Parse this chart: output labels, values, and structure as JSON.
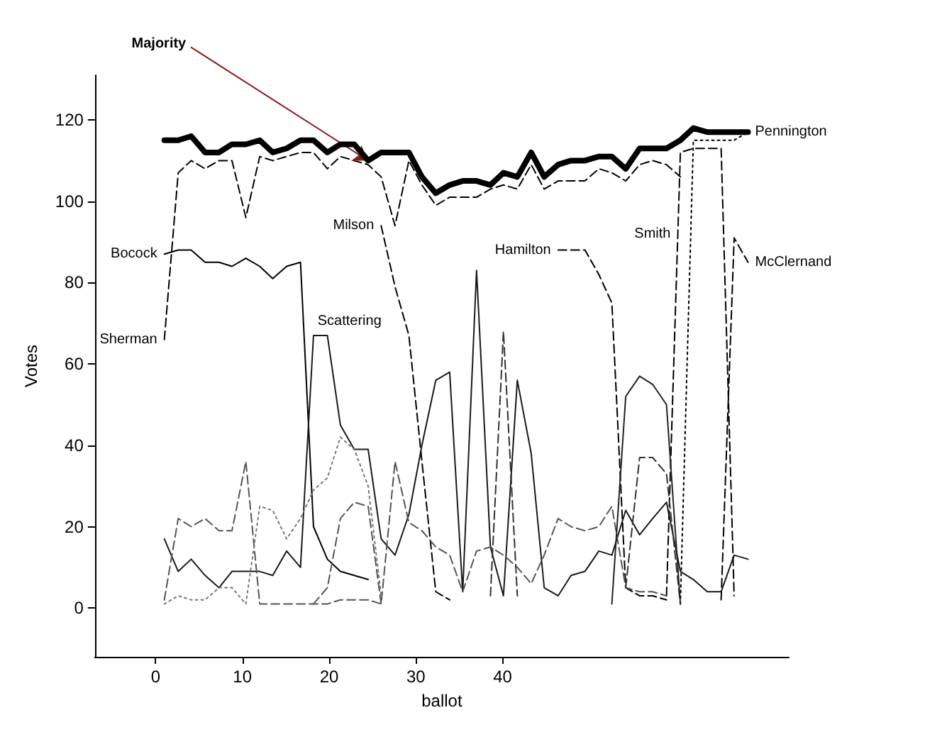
{
  "chart_data": {
    "type": "line",
    "xlabel": "ballot",
    "ylabel": "Votes",
    "xlim": [
      -7,
      73
    ],
    "ylim": [
      -12,
      131
    ],
    "xticks": [
      0,
      10,
      20,
      30,
      40
    ],
    "yticks": [
      0,
      20,
      40,
      60,
      80,
      100,
      120
    ],
    "grid": false,
    "marker": "none",
    "x": [
      1.0,
      2.6,
      4.1,
      5.7,
      7.3,
      8.8,
      10.4,
      12.0,
      13.5,
      15.1,
      16.7,
      18.2,
      19.8,
      21.3,
      22.9,
      24.5,
      26.0,
      27.6,
      29.2,
      30.7,
      32.3,
      33.9,
      35.4,
      37.0,
      38.6,
      40.1,
      41.7,
      43.3,
      44.8,
      46.4,
      47.9,
      49.5,
      51.1,
      52.6,
      54.2,
      55.8,
      57.3,
      58.9,
      60.5,
      62.0,
      63.6,
      65.2,
      66.7,
      68.3
    ],
    "series": [
      {
        "color": "#000000",
        "line_style": "solid",
        "values": [
          115,
          115,
          116,
          112,
          112,
          114,
          114,
          115,
          112,
          113,
          115,
          115,
          112,
          114,
          114,
          110,
          112,
          112,
          112,
          106,
          102,
          104,
          105,
          105,
          104,
          107,
          106,
          112,
          106,
          109,
          110,
          110,
          111,
          111,
          108,
          113,
          113,
          113,
          115,
          118,
          117,
          117,
          117,
          117
        ]
      },
      {
        "color": "#000000",
        "line_style": "dashed",
        "values": [
          66,
          107,
          110,
          108,
          110,
          110,
          96,
          111,
          110,
          111,
          112,
          112,
          108,
          111,
          110,
          109,
          106,
          94,
          110,
          104,
          99,
          101,
          101,
          101,
          103,
          104,
          103,
          109,
          103,
          105,
          105,
          105,
          108,
          107,
          105,
          109,
          110,
          109,
          106,
          null,
          null,
          null,
          null,
          null
        ]
      },
      {
        "color": "#000000",
        "line_style": "solid",
        "values": [
          87,
          88,
          88,
          85,
          85,
          84,
          86,
          84,
          81,
          84,
          85,
          20,
          12,
          9,
          8,
          7,
          null,
          null,
          null,
          null,
          null,
          null,
          null,
          null,
          null,
          null,
          null,
          null,
          null,
          null,
          null,
          null,
          null,
          null,
          null,
          null,
          null,
          null,
          null,
          null,
          null,
          null,
          null,
          null
        ]
      },
      {
        "color": "#1a1a1a",
        "line_style": "solid",
        "values": [
          17,
          9,
          12,
          8,
          5,
          9,
          9,
          9,
          8,
          14,
          10,
          67,
          67,
          45,
          39,
          39,
          17,
          13,
          23,
          40,
          56,
          58,
          4,
          83,
          15,
          3,
          56,
          38,
          5,
          3,
          8,
          9,
          14,
          13,
          24,
          18,
          22,
          26,
          9,
          7,
          4,
          4,
          13,
          12
        ]
      },
      {
        "color": "#000000",
        "line_style": "dashed",
        "values": [
          null,
          null,
          null,
          null,
          null,
          null,
          null,
          null,
          null,
          null,
          null,
          null,
          null,
          null,
          null,
          null,
          94,
          79,
          67,
          36,
          4,
          2,
          null,
          null,
          null,
          null,
          null,
          null,
          null,
          null,
          null,
          null,
          null,
          null,
          null,
          null,
          null,
          null,
          null,
          null,
          null,
          null,
          null,
          null
        ]
      },
      {
        "color": "#000000",
        "line_style": "dashed",
        "values": [
          null,
          null,
          null,
          null,
          null,
          null,
          null,
          null,
          null,
          null,
          null,
          null,
          null,
          null,
          null,
          null,
          null,
          null,
          null,
          null,
          null,
          null,
          null,
          null,
          null,
          null,
          null,
          null,
          null,
          88,
          88,
          88,
          82,
          75,
          5,
          3,
          3,
          2,
          null,
          null,
          null,
          null,
          null,
          null
        ]
      },
      {
        "color": "#000000",
        "line_style": "dashed",
        "values": [
          null,
          null,
          null,
          null,
          null,
          null,
          null,
          null,
          null,
          null,
          null,
          null,
          null,
          null,
          null,
          null,
          null,
          null,
          null,
          null,
          null,
          null,
          null,
          null,
          null,
          null,
          null,
          null,
          null,
          null,
          null,
          null,
          null,
          null,
          null,
          null,
          null,
          3,
          112,
          113,
          113,
          113,
          3,
          null
        ]
      },
      {
        "color": "#000000",
        "line_style": "dotted",
        "values": [
          null,
          null,
          null,
          null,
          null,
          null,
          null,
          null,
          null,
          null,
          null,
          null,
          null,
          null,
          null,
          null,
          null,
          null,
          null,
          null,
          null,
          null,
          null,
          null,
          null,
          null,
          null,
          null,
          null,
          null,
          null,
          null,
          null,
          null,
          null,
          null,
          null,
          null,
          1,
          115,
          115,
          115,
          115,
          117
        ]
      },
      {
        "color": "#000000",
        "line_style": "dashed",
        "values": [
          null,
          null,
          null,
          null,
          null,
          null,
          null,
          null,
          null,
          null,
          null,
          null,
          null,
          null,
          null,
          null,
          null,
          null,
          null,
          null,
          null,
          null,
          null,
          null,
          null,
          null,
          null,
          null,
          null,
          null,
          null,
          null,
          null,
          null,
          null,
          null,
          null,
          null,
          null,
          null,
          null,
          2,
          91,
          85
        ]
      },
      {
        "color": "#555555",
        "line_style": "dashed",
        "values": [
          2,
          22,
          20,
          22,
          19,
          19,
          36,
          1,
          1,
          1,
          1,
          1,
          1,
          2,
          2,
          2,
          1,
          36,
          21,
          19,
          15,
          13,
          4,
          14,
          15,
          13,
          10,
          6,
          13,
          22,
          20,
          19,
          20,
          25,
          5,
          4,
          4,
          3,
          null,
          null,
          null,
          null,
          null,
          null
        ]
      },
      {
        "color": "#777777",
        "line_style": "dotted",
        "values": [
          1,
          3,
          2,
          2,
          5,
          5,
          1,
          25,
          24,
          17,
          22,
          29,
          32,
          42,
          39,
          30,
          3,
          null,
          null,
          null,
          null,
          null,
          null,
          null,
          null,
          null,
          null,
          null,
          null,
          null,
          null,
          null,
          null,
          null,
          null,
          null,
          null,
          null,
          null,
          null,
          null,
          null,
          null,
          null
        ]
      },
      {
        "color": "#555555",
        "line_style": "dashed",
        "values": [
          null,
          null,
          null,
          null,
          null,
          null,
          null,
          null,
          null,
          null,
          null,
          1,
          5,
          22,
          26,
          25,
          1,
          null,
          null,
          null,
          null,
          null,
          null,
          null,
          null,
          null,
          null,
          null,
          null,
          null,
          null,
          null,
          null,
          null,
          null,
          null,
          null,
          null,
          null,
          null,
          null,
          null,
          null,
          null
        ]
      },
      {
        "color": "#333333",
        "line_style": "dashed",
        "values": [
          null,
          null,
          null,
          null,
          null,
          null,
          null,
          null,
          null,
          null,
          null,
          null,
          null,
          null,
          null,
          null,
          null,
          null,
          null,
          null,
          null,
          null,
          null,
          null,
          null,
          null,
          null,
          null,
          null,
          null,
          null,
          null,
          null,
          null,
          5,
          37,
          37,
          33,
          1,
          null,
          null,
          null,
          null,
          null
        ]
      },
      {
        "color": "#333333",
        "line_style": "dashed",
        "values": [
          null,
          null,
          null,
          null,
          null,
          null,
          null,
          null,
          null,
          null,
          null,
          null,
          null,
          null,
          null,
          null,
          null,
          null,
          null,
          null,
          null,
          null,
          null,
          null,
          3,
          68,
          3,
          null,
          null,
          null,
          null,
          null,
          null,
          null,
          null,
          null,
          null,
          null,
          null,
          null,
          null,
          null,
          null,
          null
        ]
      },
      {
        "color": "#222222",
        "line_style": "solid",
        "values": [
          null,
          null,
          null,
          null,
          null,
          null,
          null,
          null,
          null,
          null,
          null,
          null,
          null,
          null,
          null,
          null,
          null,
          null,
          null,
          null,
          null,
          null,
          null,
          null,
          null,
          null,
          null,
          null,
          null,
          null,
          null,
          null,
          null,
          1,
          52,
          57,
          55,
          50,
          1,
          null,
          null,
          null,
          null,
          null
        ]
      }
    ],
    "annotations": [
      {
        "text": "Majority",
        "x": 24.5,
        "y": 110
      },
      {
        "text": "Bocock",
        "x": 1.0,
        "y": 87
      },
      {
        "text": "Sherman",
        "x": 1.0,
        "y": 66
      },
      {
        "text": "Milson",
        "x": 26.0,
        "y": 94
      },
      {
        "text": "Scattering",
        "x": 19.0,
        "y": 67
      },
      {
        "text": "Hamilton",
        "x": 46.4,
        "y": 88
      },
      {
        "text": "Smith",
        "x": 60.2,
        "y": 92
      },
      {
        "text": "Pennington",
        "x": 68.3,
        "y": 117
      },
      {
        "text": "McClernand",
        "x": 68.3,
        "y": 85
      }
    ]
  }
}
